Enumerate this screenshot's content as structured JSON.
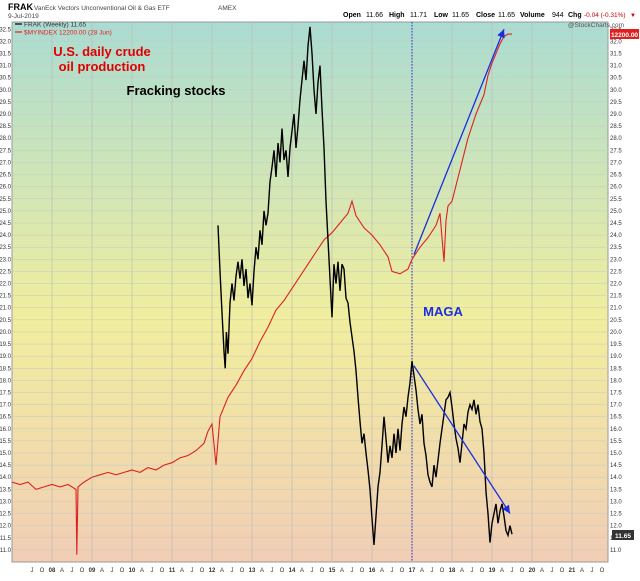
{
  "header": {
    "symbol": "FRAK",
    "full_name": "VanEck Vectors Unconventional Oil & Gas ETF",
    "exchange": "AMEX",
    "date": "9-Jul-2019",
    "open_label": "Open",
    "open": "11.66",
    "high_label": "High",
    "high": "11.71",
    "low_label": "Low",
    "low": "11.65",
    "close_label": "Close",
    "close": "11.65",
    "volume_label": "Volume",
    "volume": "944",
    "chg_label": "Chg",
    "chg": "-0.04 (-0.31%)",
    "down_marker": "▼"
  },
  "legend": {
    "series1": "FRAK (Weekly) 11.65",
    "series2": "$MYINDEX 12200.00 (28 Jun)"
  },
  "watermark": "@StockCharts.com",
  "annotations": {
    "red_title_line1": "U.S. daily crude",
    "red_title_line2": "oil production",
    "black_title": "Fracking stocks",
    "maga": "MAGA"
  },
  "colors": {
    "frak": "#000000",
    "production": "#e02020",
    "arrows": "#1a2ee0",
    "annotation_red": "#e00000",
    "annotation_blue": "#1a2ee0",
    "gradient_top": "#aadcd2",
    "gradient_mid": "#f1ee9d",
    "gradient_bottom": "#f1cdb5",
    "badge_frak": "#333333",
    "badge_production": "#e02020"
  },
  "chart_data": {
    "type": "line",
    "x_domain": [
      2007.0,
      2021.9
    ],
    "ylim": [
      10.5,
      32.8
    ],
    "y_ticks": [
      "11.0",
      "11.5",
      "12.0",
      "12.5",
      "13.0",
      "13.5",
      "14.0",
      "14.5",
      "15.0",
      "15.5",
      "16.0",
      "16.5",
      "17.0",
      "17.5",
      "18.0",
      "18.5",
      "19.0",
      "19.5",
      "20.0",
      "20.5",
      "21.0",
      "21.5",
      "22.0",
      "22.5",
      "23.0",
      "23.5",
      "24.0",
      "24.5",
      "25.0",
      "25.5",
      "26.0",
      "26.5",
      "27.0",
      "27.5",
      "28.0",
      "28.5",
      "29.0",
      "29.5",
      "30.0",
      "30.5",
      "31.0",
      "31.5",
      "32.0",
      "32.5"
    ],
    "x_month_ticks": [
      "J",
      "O",
      "08",
      "A",
      "J",
      "O",
      "09",
      "A",
      "J",
      "O",
      "10",
      "A",
      "J",
      "O",
      "11",
      "A",
      "J",
      "O",
      "12",
      "A",
      "J",
      "O",
      "13",
      "A",
      "J",
      "O",
      "14",
      "A",
      "J",
      "O",
      "15",
      "A",
      "J",
      "O",
      "16",
      "A",
      "J",
      "O",
      "17",
      "A",
      "J",
      "O",
      "18",
      "A",
      "J",
      "O",
      "19",
      "A",
      "J",
      "O",
      "20",
      "A",
      "J",
      "O",
      "21",
      "A",
      "J",
      "O"
    ],
    "last_value_badges": {
      "frak": "11.65",
      "production": "12200.00"
    },
    "series": [
      {
        "name": "FRAK (Weekly) 11.65",
        "points": [
          [
            2012.15,
            24.4
          ],
          [
            2012.2,
            22.5
          ],
          [
            2012.25,
            20.8
          ],
          [
            2012.3,
            19.2
          ],
          [
            2012.33,
            18.5
          ],
          [
            2012.36,
            20.0
          ],
          [
            2012.4,
            19.1
          ],
          [
            2012.45,
            21.2
          ],
          [
            2012.5,
            22.0
          ],
          [
            2012.55,
            21.3
          ],
          [
            2012.6,
            22.3
          ],
          [
            2012.65,
            22.9
          ],
          [
            2012.7,
            22.2
          ],
          [
            2012.75,
            23.0
          ],
          [
            2012.8,
            21.9
          ],
          [
            2012.85,
            22.6
          ],
          [
            2012.9,
            21.4
          ],
          [
            2012.95,
            22.0
          ],
          [
            2013.0,
            21.1
          ],
          [
            2013.05,
            22.5
          ],
          [
            2013.1,
            23.5
          ],
          [
            2013.15,
            23.0
          ],
          [
            2013.2,
            24.2
          ],
          [
            2013.25,
            23.6
          ],
          [
            2013.3,
            25.0
          ],
          [
            2013.35,
            24.4
          ],
          [
            2013.4,
            24.9
          ],
          [
            2013.45,
            26.2
          ],
          [
            2013.5,
            26.8
          ],
          [
            2013.55,
            27.5
          ],
          [
            2013.6,
            26.4
          ],
          [
            2013.65,
            27.8
          ],
          [
            2013.7,
            27.0
          ],
          [
            2013.75,
            28.4
          ],
          [
            2013.8,
            27.1
          ],
          [
            2013.85,
            27.5
          ],
          [
            2013.9,
            26.4
          ],
          [
            2013.95,
            27.6
          ],
          [
            2014.0,
            28.3
          ],
          [
            2014.05,
            29.0
          ],
          [
            2014.1,
            27.6
          ],
          [
            2014.15,
            28.5
          ],
          [
            2014.2,
            29.6
          ],
          [
            2014.25,
            30.4
          ],
          [
            2014.3,
            31.2
          ],
          [
            2014.35,
            30.4
          ],
          [
            2014.4,
            31.8
          ],
          [
            2014.45,
            32.6
          ],
          [
            2014.5,
            31.5
          ],
          [
            2014.55,
            30.0
          ],
          [
            2014.6,
            29.0
          ],
          [
            2014.65,
            30.3
          ],
          [
            2014.7,
            31.0
          ],
          [
            2014.75,
            29.2
          ],
          [
            2014.8,
            27.6
          ],
          [
            2014.85,
            25.4
          ],
          [
            2014.9,
            23.8
          ],
          [
            2014.95,
            22.2
          ],
          [
            2015.0,
            20.6
          ],
          [
            2015.05,
            22.8
          ],
          [
            2015.1,
            22.0
          ],
          [
            2015.15,
            22.9
          ],
          [
            2015.2,
            21.7
          ],
          [
            2015.25,
            22.8
          ],
          [
            2015.3,
            22.6
          ],
          [
            2015.35,
            21.4
          ],
          [
            2015.4,
            21.2
          ],
          [
            2015.45,
            20.4
          ],
          [
            2015.5,
            19.8
          ],
          [
            2015.55,
            19.2
          ],
          [
            2015.6,
            18.4
          ],
          [
            2015.65,
            17.3
          ],
          [
            2015.7,
            16.3
          ],
          [
            2015.75,
            15.4
          ],
          [
            2015.8,
            15.8
          ],
          [
            2015.85,
            15.0
          ],
          [
            2015.9,
            14.3
          ],
          [
            2015.95,
            13.5
          ],
          [
            2016.0,
            12.3
          ],
          [
            2016.05,
            11.2
          ],
          [
            2016.1,
            12.4
          ],
          [
            2016.15,
            13.6
          ],
          [
            2016.2,
            14.2
          ],
          [
            2016.25,
            15.3
          ],
          [
            2016.3,
            16.5
          ],
          [
            2016.35,
            15.6
          ],
          [
            2016.4,
            14.6
          ],
          [
            2016.45,
            15.3
          ],
          [
            2016.5,
            14.8
          ],
          [
            2016.55,
            15.8
          ],
          [
            2016.6,
            15.0
          ],
          [
            2016.65,
            16.0
          ],
          [
            2016.7,
            15.1
          ],
          [
            2016.75,
            16.2
          ],
          [
            2016.8,
            16.9
          ],
          [
            2016.85,
            16.5
          ],
          [
            2016.9,
            17.3
          ],
          [
            2016.95,
            17.9
          ],
          [
            2017.0,
            18.8
          ],
          [
            2017.05,
            18.2
          ],
          [
            2017.1,
            17.6
          ],
          [
            2017.15,
            16.8
          ],
          [
            2017.2,
            16.2
          ],
          [
            2017.25,
            16.6
          ],
          [
            2017.3,
            15.4
          ],
          [
            2017.35,
            14.9
          ],
          [
            2017.4,
            14.1
          ],
          [
            2017.45,
            13.8
          ],
          [
            2017.5,
            13.6
          ],
          [
            2017.55,
            14.5
          ],
          [
            2017.6,
            14.0
          ],
          [
            2017.65,
            14.7
          ],
          [
            2017.7,
            15.4
          ],
          [
            2017.75,
            16.0
          ],
          [
            2017.8,
            16.6
          ],
          [
            2017.85,
            17.2
          ],
          [
            2017.9,
            17.3
          ],
          [
            2017.95,
            17.5
          ],
          [
            2018.0,
            16.9
          ],
          [
            2018.05,
            16.2
          ],
          [
            2018.1,
            15.6
          ],
          [
            2018.15,
            15.2
          ],
          [
            2018.2,
            14.6
          ],
          [
            2018.25,
            15.4
          ],
          [
            2018.3,
            16.2
          ],
          [
            2018.35,
            16.0
          ],
          [
            2018.4,
            16.7
          ],
          [
            2018.45,
            17.0
          ],
          [
            2018.5,
            16.8
          ],
          [
            2018.55,
            17.2
          ],
          [
            2018.6,
            16.6
          ],
          [
            2018.65,
            17.0
          ],
          [
            2018.7,
            16.3
          ],
          [
            2018.75,
            16.0
          ],
          [
            2018.8,
            15.0
          ],
          [
            2018.85,
            13.4
          ],
          [
            2018.9,
            12.5
          ],
          [
            2018.95,
            11.3
          ],
          [
            2019.0,
            12.1
          ],
          [
            2019.05,
            12.5
          ],
          [
            2019.1,
            12.9
          ],
          [
            2019.15,
            12.1
          ],
          [
            2019.2,
            12.6
          ],
          [
            2019.25,
            12.9
          ],
          [
            2019.3,
            12.4
          ],
          [
            2019.35,
            11.8
          ],
          [
            2019.4,
            11.6
          ],
          [
            2019.45,
            12.0
          ],
          [
            2019.5,
            11.65
          ]
        ]
      },
      {
        "name": "$MYINDEX 12200.00 (28 Jun)",
        "points": [
          [
            2007.0,
            13.8
          ],
          [
            2007.2,
            13.7
          ],
          [
            2007.4,
            13.8
          ],
          [
            2007.6,
            13.5
          ],
          [
            2007.8,
            13.6
          ],
          [
            2008.0,
            13.7
          ],
          [
            2008.2,
            13.6
          ],
          [
            2008.4,
            13.7
          ],
          [
            2008.6,
            13.5
          ],
          [
            2008.62,
            10.8
          ],
          [
            2008.65,
            13.6
          ],
          [
            2008.8,
            13.8
          ],
          [
            2009.0,
            14.0
          ],
          [
            2009.2,
            14.1
          ],
          [
            2009.4,
            14.2
          ],
          [
            2009.6,
            14.1
          ],
          [
            2009.8,
            14.2
          ],
          [
            2010.0,
            14.3
          ],
          [
            2010.2,
            14.2
          ],
          [
            2010.4,
            14.4
          ],
          [
            2010.6,
            14.3
          ],
          [
            2010.8,
            14.5
          ],
          [
            2011.0,
            14.6
          ],
          [
            2011.2,
            14.8
          ],
          [
            2011.4,
            14.9
          ],
          [
            2011.6,
            15.1
          ],
          [
            2011.8,
            15.4
          ],
          [
            2011.9,
            15.9
          ],
          [
            2012.0,
            16.2
          ],
          [
            2012.1,
            14.5
          ],
          [
            2012.2,
            16.5
          ],
          [
            2012.4,
            17.3
          ],
          [
            2012.6,
            17.8
          ],
          [
            2012.8,
            18.4
          ],
          [
            2013.0,
            18.9
          ],
          [
            2013.2,
            19.6
          ],
          [
            2013.4,
            20.2
          ],
          [
            2013.6,
            20.9
          ],
          [
            2013.8,
            21.3
          ],
          [
            2014.0,
            21.8
          ],
          [
            2014.2,
            22.3
          ],
          [
            2014.4,
            22.8
          ],
          [
            2014.6,
            23.3
          ],
          [
            2014.8,
            23.8
          ],
          [
            2015.0,
            24.1
          ],
          [
            2015.2,
            24.5
          ],
          [
            2015.4,
            24.9
          ],
          [
            2015.5,
            25.4
          ],
          [
            2015.6,
            24.8
          ],
          [
            2015.8,
            24.3
          ],
          [
            2016.0,
            24.0
          ],
          [
            2016.2,
            23.6
          ],
          [
            2016.4,
            23.1
          ],
          [
            2016.5,
            22.5
          ],
          [
            2016.7,
            22.4
          ],
          [
            2016.9,
            22.6
          ],
          [
            2017.0,
            23.0
          ],
          [
            2017.2,
            23.5
          ],
          [
            2017.4,
            23.9
          ],
          [
            2017.6,
            24.4
          ],
          [
            2017.7,
            24.9
          ],
          [
            2017.8,
            22.9
          ],
          [
            2017.85,
            24.6
          ],
          [
            2017.9,
            25.2
          ],
          [
            2018.0,
            25.4
          ],
          [
            2018.2,
            26.7
          ],
          [
            2018.4,
            28.0
          ],
          [
            2018.6,
            29.0
          ],
          [
            2018.8,
            29.8
          ],
          [
            2018.9,
            30.6
          ],
          [
            2019.0,
            31.1
          ],
          [
            2019.1,
            31.5
          ],
          [
            2019.2,
            31.9
          ],
          [
            2019.3,
            32.2
          ],
          [
            2019.4,
            32.3
          ],
          [
            2019.5,
            32.3
          ]
        ]
      }
    ],
    "arrows": [
      {
        "from": [
          2017.05,
          23.2
        ],
        "to": [
          2019.3,
          32.5
        ]
      },
      {
        "from": [
          2017.05,
          18.6
        ],
        "to": [
          2019.45,
          12.5
        ]
      }
    ],
    "vline_x": 2017.0
  }
}
